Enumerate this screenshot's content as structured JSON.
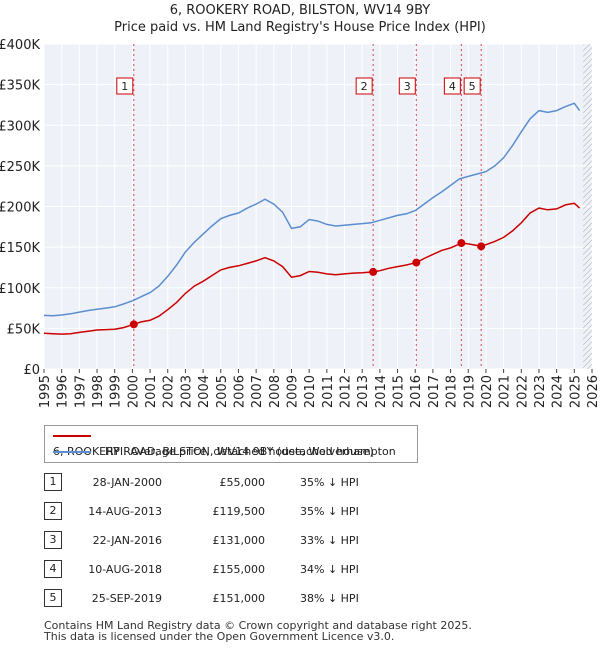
{
  "title_line1": "6, ROOKERY ROAD, BILSTON, WV14 9BY",
  "title_line2": "Price paid vs. HM Land Registry's House Price Index (HPI)",
  "chart_data": {
    "type": "line",
    "xlim": [
      1995,
      2026
    ],
    "ylim": [
      0,
      400000
    ],
    "x_ticks": [
      1995,
      1996,
      1997,
      1998,
      1999,
      2000,
      2001,
      2002,
      2003,
      2004,
      2005,
      2006,
      2007,
      2008,
      2009,
      2010,
      2011,
      2012,
      2013,
      2014,
      2015,
      2016,
      2017,
      2018,
      2019,
      2020,
      2021,
      2022,
      2023,
      2024,
      2025,
      2026
    ],
    "y_ticks": [
      {
        "value": 0,
        "label": "£0"
      },
      {
        "value": 50000,
        "label": "£50K"
      },
      {
        "value": 100000,
        "label": "£100K"
      },
      {
        "value": 150000,
        "label": "£150K"
      },
      {
        "value": 200000,
        "label": "£200K"
      },
      {
        "value": 250000,
        "label": "£250K"
      },
      {
        "value": 300000,
        "label": "£300K"
      },
      {
        "value": 350000,
        "label": "£350K"
      },
      {
        "value": 400000,
        "label": "£400K"
      }
    ],
    "grid": true,
    "series": [
      {
        "name": "6, ROOKERY ROAD, BILSTON, WV14 9BY (detached house)",
        "color": "#cc0000",
        "points": [
          [
            1995.0,
            44000
          ],
          [
            1995.5,
            43500
          ],
          [
            1996.0,
            43000
          ],
          [
            1996.5,
            43500
          ],
          [
            1997.0,
            45000
          ],
          [
            1997.5,
            46500
          ],
          [
            1998.0,
            48000
          ],
          [
            1998.5,
            48500
          ],
          [
            1999.0,
            49000
          ],
          [
            1999.5,
            51000
          ],
          [
            2000.08,
            55000
          ],
          [
            2000.5,
            58000
          ],
          [
            2001.0,
            60000
          ],
          [
            2001.5,
            65000
          ],
          [
            2002.0,
            73000
          ],
          [
            2002.5,
            82000
          ],
          [
            2003.0,
            93000
          ],
          [
            2003.5,
            102000
          ],
          [
            2004.0,
            108000
          ],
          [
            2004.5,
            115000
          ],
          [
            2005.0,
            122000
          ],
          [
            2005.5,
            125000
          ],
          [
            2006.0,
            127000
          ],
          [
            2006.5,
            130000
          ],
          [
            2007.0,
            133000
          ],
          [
            2007.5,
            137000
          ],
          [
            2008.0,
            133000
          ],
          [
            2008.5,
            126000
          ],
          [
            2009.0,
            113000
          ],
          [
            2009.5,
            115000
          ],
          [
            2010.0,
            120000
          ],
          [
            2010.5,
            119000
          ],
          [
            2011.0,
            117000
          ],
          [
            2011.5,
            116000
          ],
          [
            2012.0,
            117000
          ],
          [
            2012.5,
            118000
          ],
          [
            2013.0,
            118500
          ],
          [
            2013.62,
            119500
          ],
          [
            2014.0,
            121000
          ],
          [
            2014.5,
            124000
          ],
          [
            2015.0,
            126000
          ],
          [
            2015.5,
            128000
          ],
          [
            2016.06,
            131000
          ],
          [
            2016.5,
            136000
          ],
          [
            2017.0,
            141000
          ],
          [
            2017.5,
            146000
          ],
          [
            2018.0,
            149000
          ],
          [
            2018.61,
            155000
          ],
          [
            2019.0,
            154000
          ],
          [
            2019.5,
            152000
          ],
          [
            2019.73,
            151000
          ],
          [
            2020.0,
            153000
          ],
          [
            2020.5,
            157000
          ],
          [
            2021.0,
            162000
          ],
          [
            2021.5,
            170000
          ],
          [
            2022.0,
            180000
          ],
          [
            2022.5,
            192000
          ],
          [
            2023.0,
            198000
          ],
          [
            2023.5,
            196000
          ],
          [
            2024.0,
            197000
          ],
          [
            2024.5,
            202000
          ],
          [
            2025.0,
            204000
          ],
          [
            2025.3,
            198000
          ]
        ]
      },
      {
        "name": "HPI: Average price, detached house, Wolverhampton",
        "color": "#5a8ed0",
        "points": [
          [
            1995.0,
            66000
          ],
          [
            1995.5,
            65500
          ],
          [
            1996.0,
            66500
          ],
          [
            1996.5,
            68000
          ],
          [
            1997.0,
            70000
          ],
          [
            1997.5,
            72000
          ],
          [
            1998.0,
            73500
          ],
          [
            1998.5,
            75000
          ],
          [
            1999.0,
            76500
          ],
          [
            1999.5,
            80000
          ],
          [
            2000.0,
            84000
          ],
          [
            2000.5,
            89000
          ],
          [
            2001.0,
            94000
          ],
          [
            2001.5,
            102000
          ],
          [
            2002.0,
            114000
          ],
          [
            2002.5,
            128000
          ],
          [
            2003.0,
            144000
          ],
          [
            2003.5,
            156000
          ],
          [
            2004.0,
            166000
          ],
          [
            2004.5,
            176000
          ],
          [
            2005.0,
            185000
          ],
          [
            2005.5,
            189000
          ],
          [
            2006.0,
            192000
          ],
          [
            2006.5,
            198000
          ],
          [
            2007.0,
            203000
          ],
          [
            2007.5,
            209000
          ],
          [
            2008.0,
            203000
          ],
          [
            2008.5,
            193000
          ],
          [
            2009.0,
            173000
          ],
          [
            2009.5,
            175000
          ],
          [
            2010.0,
            184000
          ],
          [
            2010.5,
            182000
          ],
          [
            2011.0,
            178000
          ],
          [
            2011.5,
            176000
          ],
          [
            2012.0,
            177000
          ],
          [
            2012.5,
            178000
          ],
          [
            2013.0,
            179000
          ],
          [
            2013.5,
            180000
          ],
          [
            2014.0,
            183000
          ],
          [
            2014.5,
            186000
          ],
          [
            2015.0,
            189000
          ],
          [
            2015.5,
            191000
          ],
          [
            2016.0,
            195000
          ],
          [
            2016.5,
            203000
          ],
          [
            2017.0,
            211000
          ],
          [
            2017.5,
            218000
          ],
          [
            2018.0,
            226000
          ],
          [
            2018.5,
            234000
          ],
          [
            2019.0,
            237000
          ],
          [
            2019.5,
            240000
          ],
          [
            2020.0,
            243000
          ],
          [
            2020.5,
            250000
          ],
          [
            2021.0,
            260000
          ],
          [
            2021.5,
            275000
          ],
          [
            2022.0,
            292000
          ],
          [
            2022.5,
            308000
          ],
          [
            2023.0,
            318000
          ],
          [
            2023.5,
            316000
          ],
          [
            2024.0,
            318000
          ],
          [
            2024.5,
            323000
          ],
          [
            2025.0,
            327000
          ],
          [
            2025.3,
            318000
          ]
        ]
      }
    ],
    "sales": [
      {
        "num": "1",
        "x": 2000.08,
        "price": 55000
      },
      {
        "num": "2",
        "x": 2013.62,
        "price": 119500
      },
      {
        "num": "3",
        "x": 2016.06,
        "price": 131000
      },
      {
        "num": "4",
        "x": 2018.61,
        "price": 155000
      },
      {
        "num": "5",
        "x": 2019.73,
        "price": 151000
      }
    ],
    "forecast_hatch_start": 2025.5
  },
  "legend": {
    "property": "6, ROOKERY ROAD, BILSTON, WV14 9BY (detached house)",
    "hpi": "HPI: Average price, detached house, Wolverhampton",
    "property_color": "#cc0000",
    "hpi_color": "#5a8ed0"
  },
  "transactions": [
    {
      "num": "1",
      "date": "28-JAN-2000",
      "price": "£55,000",
      "hpi": "35% ↓ HPI"
    },
    {
      "num": "2",
      "date": "14-AUG-2013",
      "price": "£119,500",
      "hpi": "35% ↓ HPI"
    },
    {
      "num": "3",
      "date": "22-JAN-2016",
      "price": "£131,000",
      "hpi": "33% ↓ HPI"
    },
    {
      "num": "4",
      "date": "10-AUG-2018",
      "price": "£155,000",
      "hpi": "34% ↓ HPI"
    },
    {
      "num": "5",
      "date": "25-SEP-2019",
      "price": "£151,000",
      "hpi": "38% ↓ HPI"
    }
  ],
  "footer_line1": "Contains HM Land Registry data © Crown copyright and database right 2025.",
  "footer_line2": "This data is licensed under the Open Government Licence v3.0."
}
